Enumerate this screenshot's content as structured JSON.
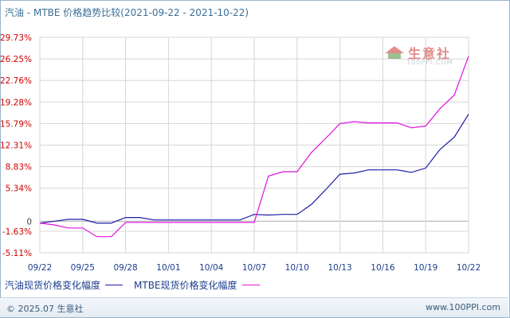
{
  "title": "汽油 - MTBE 价格趋势比较(2021-09-22 - 2021-10-22)",
  "watermark": {
    "text": "生意社",
    "url": "100PPI.COM"
  },
  "footer": {
    "copyright": "© 2025.07 生意社",
    "url": "www.100PPI.com"
  },
  "colors": {
    "series1": "#1c1ca8",
    "series2": "#e010e0",
    "grid": "#d6d6d6",
    "ytick": "#cc0000",
    "xtick": "#1a3d8c"
  },
  "chart_data": {
    "type": "line",
    "title": "汽油 - MTBE 价格趋势比较(2021-09-22 - 2021-10-22)",
    "x": [
      0,
      1,
      2,
      3,
      4,
      5,
      6,
      7,
      8,
      9,
      10,
      11,
      12,
      13,
      14,
      15,
      16,
      17,
      18,
      19,
      20,
      21,
      22,
      23,
      24,
      25,
      26,
      27,
      28,
      29,
      30
    ],
    "x_tick_labels": [
      "09/22",
      "09/25",
      "09/28",
      "10/01",
      "10/04",
      "10/07",
      "10/10",
      "10/13",
      "10/16",
      "10/19",
      "10/22"
    ],
    "y_tick_labels": [
      "29.73%",
      "26.25%",
      "22.76%",
      "19.28%",
      "15.79%",
      "12.31%",
      "8.83%",
      "5.34%",
      "0",
      "-1.63%",
      "-5.11%"
    ],
    "y_ticks": [
      29.73,
      26.25,
      22.76,
      19.28,
      15.79,
      12.31,
      8.83,
      5.34,
      0,
      -1.63,
      -5.11
    ],
    "ylim": [
      -5.11,
      29.73
    ],
    "grid": true,
    "legend_position": "bottom-left",
    "series": [
      {
        "name": "汽油现货价格变化幅度",
        "values": [
          -0.3,
          0,
          0.3,
          0.3,
          -0.3,
          -0.3,
          0.6,
          0.6,
          0.2,
          0.2,
          0.2,
          0.2,
          0.2,
          0.2,
          0.2,
          1.1,
          1.0,
          1.1,
          1.1,
          2.7,
          5.1,
          7.6,
          7.8,
          8.3,
          8.3,
          8.3,
          7.9,
          8.6,
          11.6,
          13.6,
          17.3
        ]
      },
      {
        "name": "MTBE现货价格变化幅度",
        "values": [
          -0.3,
          -0.6,
          -1.1,
          -1.1,
          -2.5,
          -2.5,
          -0.2,
          -0.2,
          -0.2,
          -0.2,
          -0.2,
          -0.2,
          -0.2,
          -0.2,
          -0.2,
          -0.2,
          7.3,
          8.0,
          8.0,
          11.1,
          13.4,
          15.8,
          16.1,
          15.9,
          15.9,
          15.9,
          15.1,
          15.4,
          18.2,
          20.4,
          26.7
        ]
      }
    ]
  }
}
